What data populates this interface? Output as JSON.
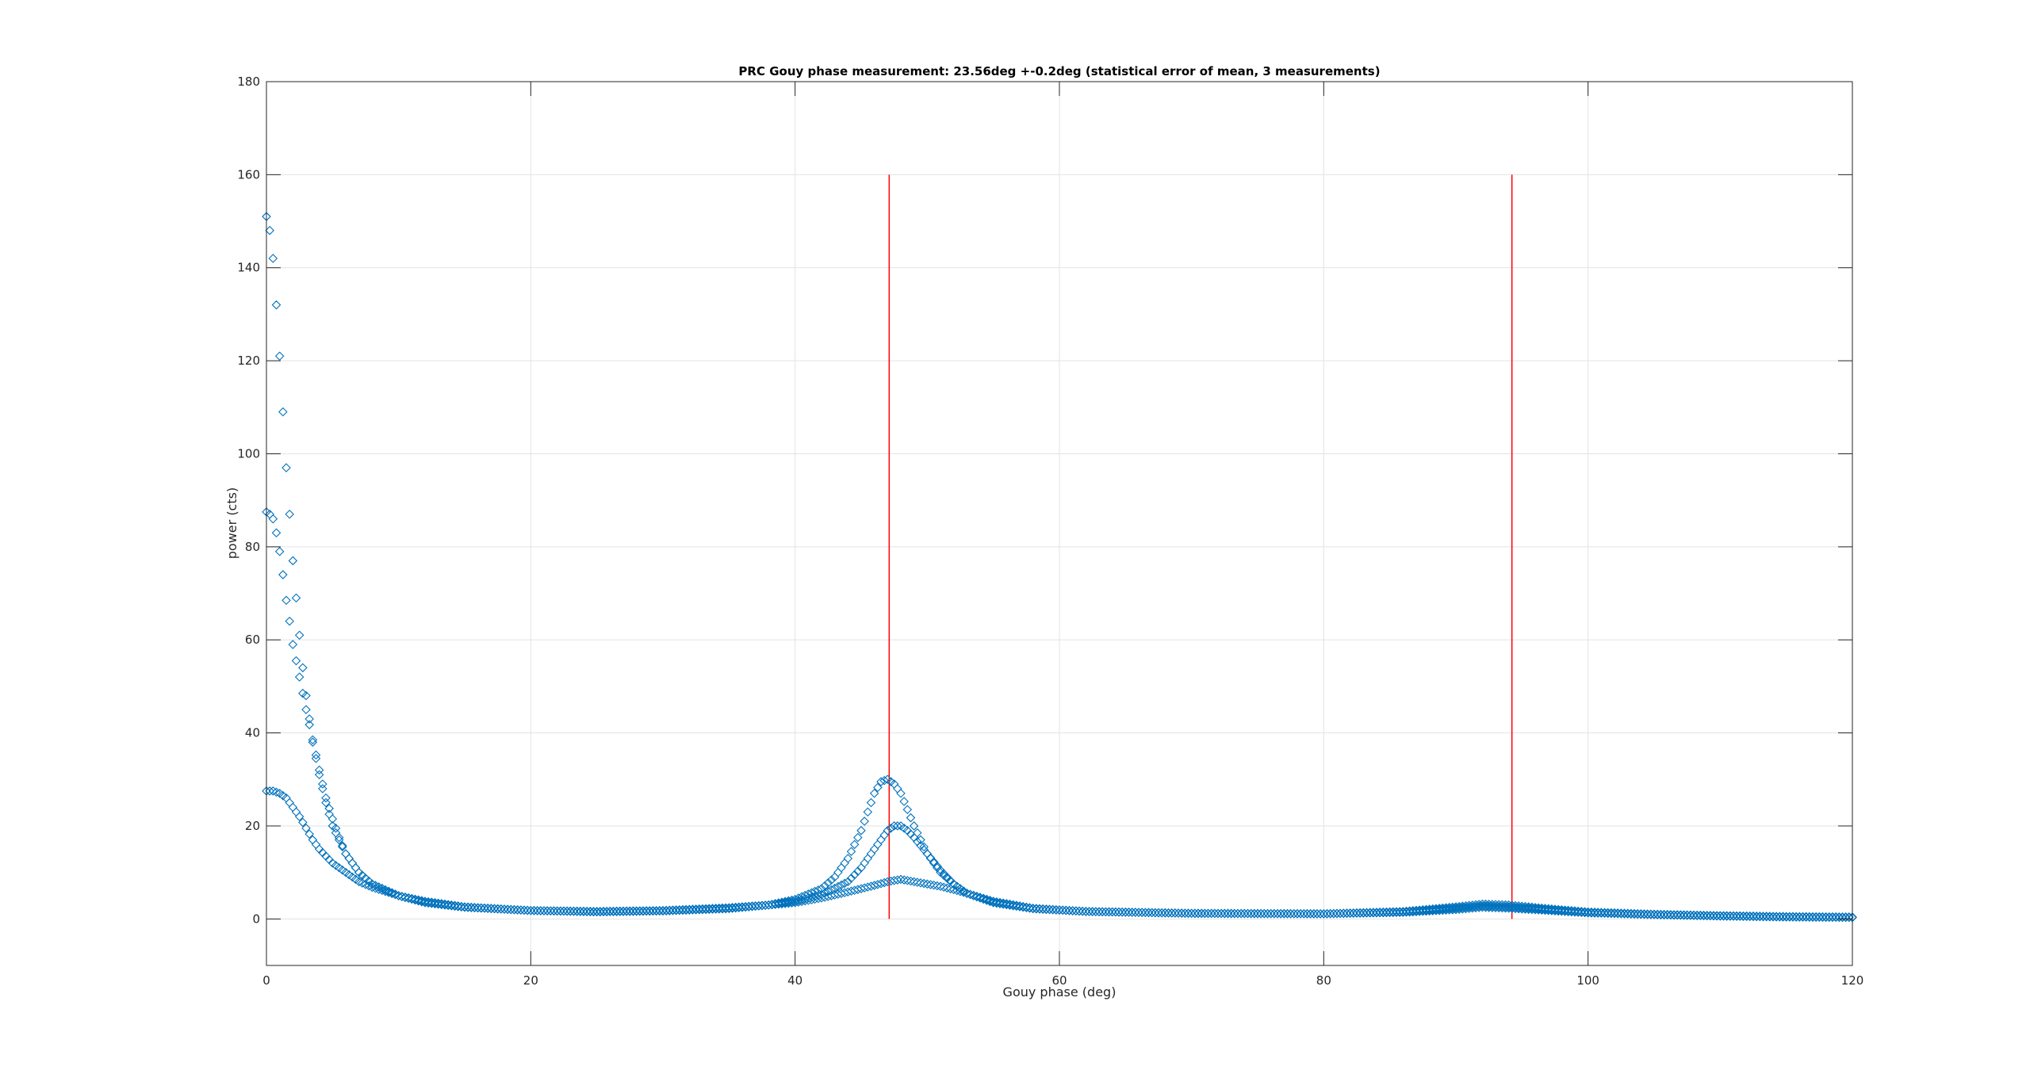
{
  "chart_data": {
    "type": "scatter",
    "title": "PRC Gouy phase measurement: 23.56deg +-0.2deg (statistical error of mean, 3 measurements)",
    "xlabel": "Gouy phase (deg)",
    "ylabel": "power (cts)",
    "xlim": [
      0,
      120
    ],
    "ylim": [
      -10,
      180
    ],
    "xticks": [
      0,
      20,
      40,
      60,
      80,
      100,
      120
    ],
    "yticks": [
      0,
      20,
      40,
      60,
      80,
      100,
      120,
      140,
      160,
      180
    ],
    "grid": true,
    "marker": "diamond-open",
    "marker_color": "#0072BD",
    "vline_color": "#FF0000",
    "vertical_lines": [
      {
        "x": 47.12,
        "y_from": 0,
        "y_to": 160
      },
      {
        "x": 94.24,
        "y_from": 0,
        "y_to": 160
      }
    ],
    "x_step": 0.25,
    "series": [
      {
        "x_start": 0,
        "x_end": 120,
        "y_keypoints": [
          [
            0,
            151
          ],
          [
            0.25,
            148
          ],
          [
            0.5,
            142
          ],
          [
            0.75,
            132
          ],
          [
            1,
            121
          ],
          [
            1.25,
            109
          ],
          [
            1.5,
            97
          ],
          [
            1.75,
            87
          ],
          [
            2,
            77
          ],
          [
            2.25,
            69
          ],
          [
            2.5,
            61
          ],
          [
            2.75,
            54
          ],
          [
            3,
            48
          ],
          [
            3.25,
            43
          ],
          [
            3.5,
            38
          ],
          [
            4,
            31
          ],
          [
            4.5,
            25
          ],
          [
            5,
            20
          ],
          [
            6,
            14
          ],
          [
            7,
            10
          ],
          [
            8,
            7.5
          ],
          [
            10,
            5
          ],
          [
            12,
            3.5
          ],
          [
            15,
            2.5
          ],
          [
            20,
            1.8
          ],
          [
            25,
            1.6
          ],
          [
            30,
            1.8
          ],
          [
            35,
            2.4
          ],
          [
            38,
            3
          ],
          [
            40,
            4.2
          ],
          [
            42,
            6.5
          ],
          [
            43,
            9
          ],
          [
            44,
            13
          ],
          [
            45,
            19
          ],
          [
            45.5,
            23
          ],
          [
            46,
            27
          ],
          [
            46.5,
            29.5
          ],
          [
            47,
            30
          ],
          [
            47.5,
            29
          ],
          [
            48,
            27
          ],
          [
            48.5,
            23.5
          ],
          [
            49,
            20
          ],
          [
            50,
            14
          ],
          [
            51,
            10
          ],
          [
            52,
            7.5
          ],
          [
            53,
            5.5
          ],
          [
            55,
            3.5
          ],
          [
            58,
            2.2
          ],
          [
            62,
            1.6
          ],
          [
            70,
            1.2
          ],
          [
            80,
            1.1
          ],
          [
            86,
            1.6
          ],
          [
            90,
            2.6
          ],
          [
            92,
            3.2
          ],
          [
            94,
            3
          ],
          [
            97,
            2.2
          ],
          [
            100,
            1.5
          ],
          [
            105,
            1
          ],
          [
            110,
            0.7
          ],
          [
            115,
            0.5
          ],
          [
            120,
            0.4
          ]
        ]
      },
      {
        "x_start": 0,
        "x_end": 120,
        "y_keypoints": [
          [
            0,
            87.5
          ],
          [
            0.25,
            87
          ],
          [
            0.5,
            86
          ],
          [
            0.75,
            83
          ],
          [
            1,
            79
          ],
          [
            1.25,
            74
          ],
          [
            1.5,
            68.5
          ],
          [
            1.75,
            64
          ],
          [
            2,
            59
          ],
          [
            2.5,
            52
          ],
          [
            3,
            45
          ],
          [
            3.5,
            38.5
          ],
          [
            4,
            32
          ],
          [
            4.5,
            26
          ],
          [
            5,
            21.5
          ],
          [
            5.5,
            17.5
          ],
          [
            6,
            14
          ],
          [
            7,
            10
          ],
          [
            8,
            7.5
          ],
          [
            10,
            5
          ],
          [
            12,
            3.5
          ],
          [
            15,
            2.5
          ],
          [
            20,
            1.8
          ],
          [
            25,
            1.6
          ],
          [
            30,
            1.8
          ],
          [
            35,
            2.4
          ],
          [
            38,
            3
          ],
          [
            40,
            3.8
          ],
          [
            42,
            5.2
          ],
          [
            44,
            8
          ],
          [
            45,
            11
          ],
          [
            46,
            15
          ],
          [
            47,
            19
          ],
          [
            47.5,
            20
          ],
          [
            48,
            20
          ],
          [
            48.5,
            19
          ],
          [
            49,
            17.5
          ],
          [
            50,
            14
          ],
          [
            51,
            10.5
          ],
          [
            52,
            7.5
          ],
          [
            53,
            5.5
          ],
          [
            55,
            3.5
          ],
          [
            58,
            2.2
          ],
          [
            62,
            1.6
          ],
          [
            70,
            1.2
          ],
          [
            80,
            1.1
          ],
          [
            86,
            1.5
          ],
          [
            90,
            2.3
          ],
          [
            92,
            2.8
          ],
          [
            94,
            2.6
          ],
          [
            97,
            2
          ],
          [
            100,
            1.4
          ],
          [
            105,
            1
          ],
          [
            110,
            0.7
          ],
          [
            115,
            0.5
          ],
          [
            120,
            0.4
          ]
        ]
      },
      {
        "x_start": 0,
        "x_end": 120,
        "y_keypoints": [
          [
            0,
            27.5
          ],
          [
            0.5,
            27.5
          ],
          [
            1,
            27
          ],
          [
            1.5,
            26
          ],
          [
            2,
            24
          ],
          [
            2.5,
            22
          ],
          [
            3,
            19.5
          ],
          [
            3.5,
            17
          ],
          [
            4,
            15
          ],
          [
            5,
            12
          ],
          [
            6,
            10
          ],
          [
            7,
            8
          ],
          [
            8,
            6.8
          ],
          [
            10,
            5
          ],
          [
            12,
            3.8
          ],
          [
            15,
            2.6
          ],
          [
            20,
            1.8
          ],
          [
            25,
            1.5
          ],
          [
            30,
            1.7
          ],
          [
            35,
            2.2
          ],
          [
            40,
            3.5
          ],
          [
            42,
            4.5
          ],
          [
            44,
            5.8
          ],
          [
            46,
            7.2
          ],
          [
            47,
            8
          ],
          [
            48,
            8.5
          ],
          [
            49,
            8
          ],
          [
            50,
            7.5
          ],
          [
            51,
            7
          ],
          [
            52,
            6.3
          ],
          [
            53,
            5.5
          ],
          [
            55,
            3.8
          ],
          [
            58,
            2.3
          ],
          [
            62,
            1.6
          ],
          [
            70,
            1.2
          ],
          [
            80,
            1.1
          ],
          [
            86,
            1.4
          ],
          [
            90,
            2
          ],
          [
            92,
            2.5
          ],
          [
            94,
            2.3
          ],
          [
            97,
            1.8
          ],
          [
            100,
            1.3
          ],
          [
            105,
            0.9
          ],
          [
            110,
            0.6
          ],
          [
            115,
            0.4
          ],
          [
            120,
            0.3
          ]
        ]
      }
    ]
  }
}
